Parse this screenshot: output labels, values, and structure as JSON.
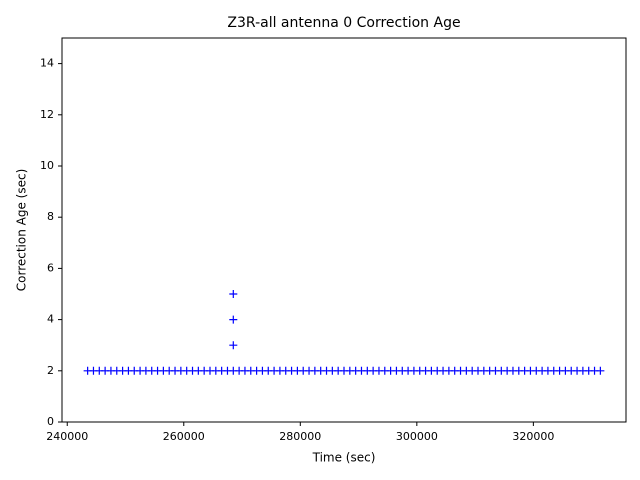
{
  "chart_data": {
    "type": "scatter",
    "title": "Z3R-all antenna 0 Correction Age",
    "x_label": "Time (sec)",
    "y_label": "Correction Age (sec)",
    "color": "#0000ff",
    "marker": "+",
    "x": [
      243500,
      244500,
      245500,
      246500,
      247500,
      248500,
      249500,
      250500,
      251500,
      252500,
      253500,
      254500,
      255500,
      256500,
      257500,
      258500,
      259500,
      260500,
      261500,
      262500,
      263500,
      264500,
      265500,
      266500,
      267500,
      268500,
      269500,
      270500,
      271500,
      272500,
      273500,
      274500,
      275500,
      276500,
      277500,
      278500,
      279500,
      280500,
      281500,
      282500,
      283500,
      284500,
      285500,
      286500,
      287500,
      288500,
      289500,
      290500,
      291500,
      292500,
      293500,
      294500,
      295500,
      296500,
      297500,
      298500,
      299500,
      300500,
      301500,
      302500,
      303500,
      304500,
      305500,
      306500,
      307500,
      308500,
      309500,
      310500,
      311500,
      312500,
      313500,
      314500,
      315500,
      316500,
      317500,
      318500,
      319500,
      320500,
      321500,
      322500,
      323500,
      324500,
      325500,
      326500,
      327500,
      328500,
      329500,
      330500,
      331500,
      268500,
      268500,
      268500
    ],
    "y": [
      2,
      2,
      2,
      2,
      2,
      2,
      2,
      2,
      2,
      2,
      2,
      2,
      2,
      2,
      2,
      2,
      2,
      2,
      2,
      2,
      2,
      2,
      2,
      2,
      2,
      2,
      2,
      2,
      2,
      2,
      2,
      2,
      2,
      2,
      2,
      2,
      2,
      2,
      2,
      2,
      2,
      2,
      2,
      2,
      2,
      2,
      2,
      2,
      2,
      2,
      2,
      2,
      2,
      2,
      2,
      2,
      2,
      2,
      2,
      2,
      2,
      2,
      2,
      2,
      2,
      2,
      2,
      2,
      2,
      2,
      2,
      2,
      2,
      2,
      2,
      2,
      2,
      2,
      2,
      2,
      2,
      2,
      2,
      2,
      2,
      2,
      2,
      2,
      2,
      3,
      4,
      5
    ],
    "xlim": [
      239100,
      335900
    ],
    "xticks": [
      240000,
      260000,
      280000,
      300000,
      320000
    ],
    "ylim": [
      0,
      15
    ],
    "yticks": [
      0,
      2,
      4,
      6,
      8,
      10,
      12,
      14
    ]
  }
}
